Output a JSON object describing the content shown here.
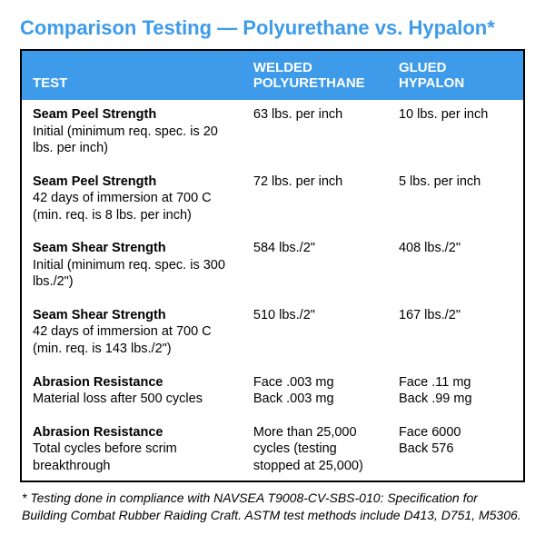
{
  "title_prefix": "Comparison Testing —",
  "title_suffix": "  Polyurethane vs. Hypalon*",
  "title_color": "#3d9be9",
  "header_bg": "#3d9be9",
  "columns": [
    "TEST",
    "WELDED POLYURETHANE",
    "GLUED HYPALON"
  ],
  "rows": [
    {
      "name": "Seam Peel Strength",
      "desc": "Initial (minimum req. spec. is 20 lbs. per inch)",
      "col1": "63 lbs. per inch",
      "col2": "10 lbs. per inch"
    },
    {
      "name": "Seam Peel Strength",
      "desc": "42 days of immersion at 700 C (min. req. is 8 lbs. per inch)",
      "col1": "72 lbs. per inch",
      "col2": "5 lbs. per inch"
    },
    {
      "name": "Seam Shear Strength",
      "desc": "Initial (minimum req. spec. is 300 lbs./2\")",
      "col1": "584 lbs./2\"",
      "col2": "408 lbs./2\""
    },
    {
      "name": "Seam Shear Strength",
      "desc": "42 days of immersion at 700 C (min. req. is 143 lbs./2\")",
      "col1": "510 lbs./2\"",
      "col2": "167 lbs./2\""
    },
    {
      "name": "Abrasion Resistance",
      "desc": "Material loss after 500 cycles",
      "col1": "Face .003 mg\nBack .003 mg",
      "col2": "Face .11 mg\nBack .99 mg"
    },
    {
      "name": "Abrasion Resistance",
      "desc": "Total cycles before scrim breakthrough",
      "col1": "More than 25,000 cycles (testing stopped at 25,000)",
      "col2": "Face 6000\nBack 576"
    }
  ],
  "footnote": "* Testing done in compliance with NAVSEA T9008-CV-SBS-010: Specification for Building Combat Rubber Raiding Craft. ASTM test methods include D413, D751, M5306."
}
